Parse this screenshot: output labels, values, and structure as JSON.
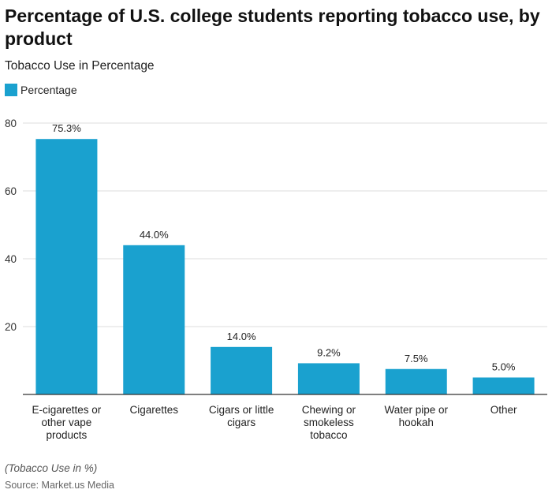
{
  "title": "Percentage of U.S. college students reporting tobacco use, by product",
  "subtitle": "Tobacco Use in Percentage",
  "note": "(Tobacco Use in %)",
  "source": "Source: Market.us Media",
  "colors": {
    "bar": "#1aa1cf",
    "grid": "#dddddd",
    "axis": "#333333"
  },
  "chart_data": {
    "type": "bar",
    "title": "Percentage of U.S. college students reporting tobacco use, by product",
    "ylabel": "Tobacco Use in Percentage",
    "categories": [
      [
        "E-cigarettes or",
        "other vape",
        "products"
      ],
      [
        "Cigarettes"
      ],
      [
        "Cigars or little",
        "cigars"
      ],
      [
        "Chewing or",
        "smokeless",
        "tobacco"
      ],
      [
        "Water pipe or",
        "hookah"
      ],
      [
        "Other"
      ]
    ],
    "series": [
      {
        "name": "Percentage",
        "values": [
          75.3,
          44.0,
          14.0,
          9.2,
          7.5,
          5.0
        ]
      }
    ],
    "data_labels": [
      "75.3%",
      "44.0%",
      "14.0%",
      "9.2%",
      "7.5%",
      "5.0%"
    ],
    "ylim": [
      0,
      80
    ],
    "yticks": [
      20,
      40,
      60,
      80
    ],
    "grid": true,
    "legend": "top-left"
  }
}
